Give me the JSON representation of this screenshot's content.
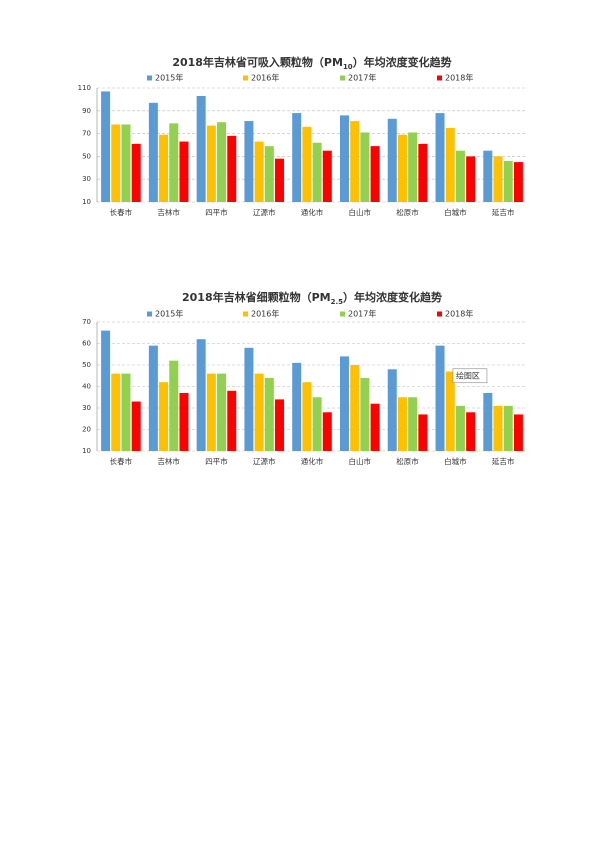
{
  "chart_data": [
    {
      "type": "bar",
      "title": [
        "2018年吉林省可吸入颗粒物（PM",
        "10",
        "）年均浓度变化趋势"
      ],
      "categories": [
        "长春市",
        "吉林市",
        "四平市",
        "辽源市",
        "通化市",
        "白山市",
        "松原市",
        "白城市",
        "延吉市"
      ],
      "series": [
        {
          "name": "2015年",
          "color": "#5b9bd5",
          "values": [
            107,
            97,
            103,
            81,
            88,
            86,
            83,
            88,
            55
          ]
        },
        {
          "name": "2016年",
          "color": "#ffc000",
          "values": [
            78,
            69,
            77,
            63,
            76,
            81,
            69,
            75,
            50
          ]
        },
        {
          "name": "2017年",
          "color": "#92d050",
          "values": [
            78,
            79,
            80,
            59,
            62,
            71,
            71,
            55,
            46
          ]
        },
        {
          "name": "2018年",
          "color": "#ff0000",
          "values": [
            61,
            63,
            68,
            48,
            55,
            59,
            61,
            50,
            45
          ]
        }
      ],
      "ylim": [
        10,
        110
      ],
      "yticks": [
        10,
        30,
        50,
        70,
        90,
        110
      ],
      "grid": true
    },
    {
      "type": "bar",
      "title": [
        "2018年吉林省细颗粒物（PM",
        "2.5",
        "）年均浓度变化趋势"
      ],
      "categories": [
        "长春市",
        "吉林市",
        "四平市",
        "辽源市",
        "通化市",
        "白山市",
        "松原市",
        "白城市",
        "延吉市"
      ],
      "series": [
        {
          "name": "2015年",
          "color": "#5b9bd5",
          "values": [
            66,
            59,
            62,
            58,
            51,
            54,
            48,
            59,
            37
          ]
        },
        {
          "name": "2016年",
          "color": "#ffc000",
          "values": [
            46,
            42,
            46,
            46,
            42,
            50,
            35,
            47,
            31
          ]
        },
        {
          "name": "2017年",
          "color": "#92d050",
          "values": [
            46,
            52,
            46,
            44,
            35,
            44,
            35,
            31,
            31
          ]
        },
        {
          "name": "2018年",
          "color": "#ff0000",
          "values": [
            33,
            37,
            38,
            34,
            28,
            32,
            27,
            28,
            27
          ]
        }
      ],
      "ylim": [
        10,
        70
      ],
      "yticks": [
        10,
        20,
        30,
        40,
        50,
        60,
        70
      ],
      "grid": true,
      "annotation": "绘图区"
    }
  ]
}
